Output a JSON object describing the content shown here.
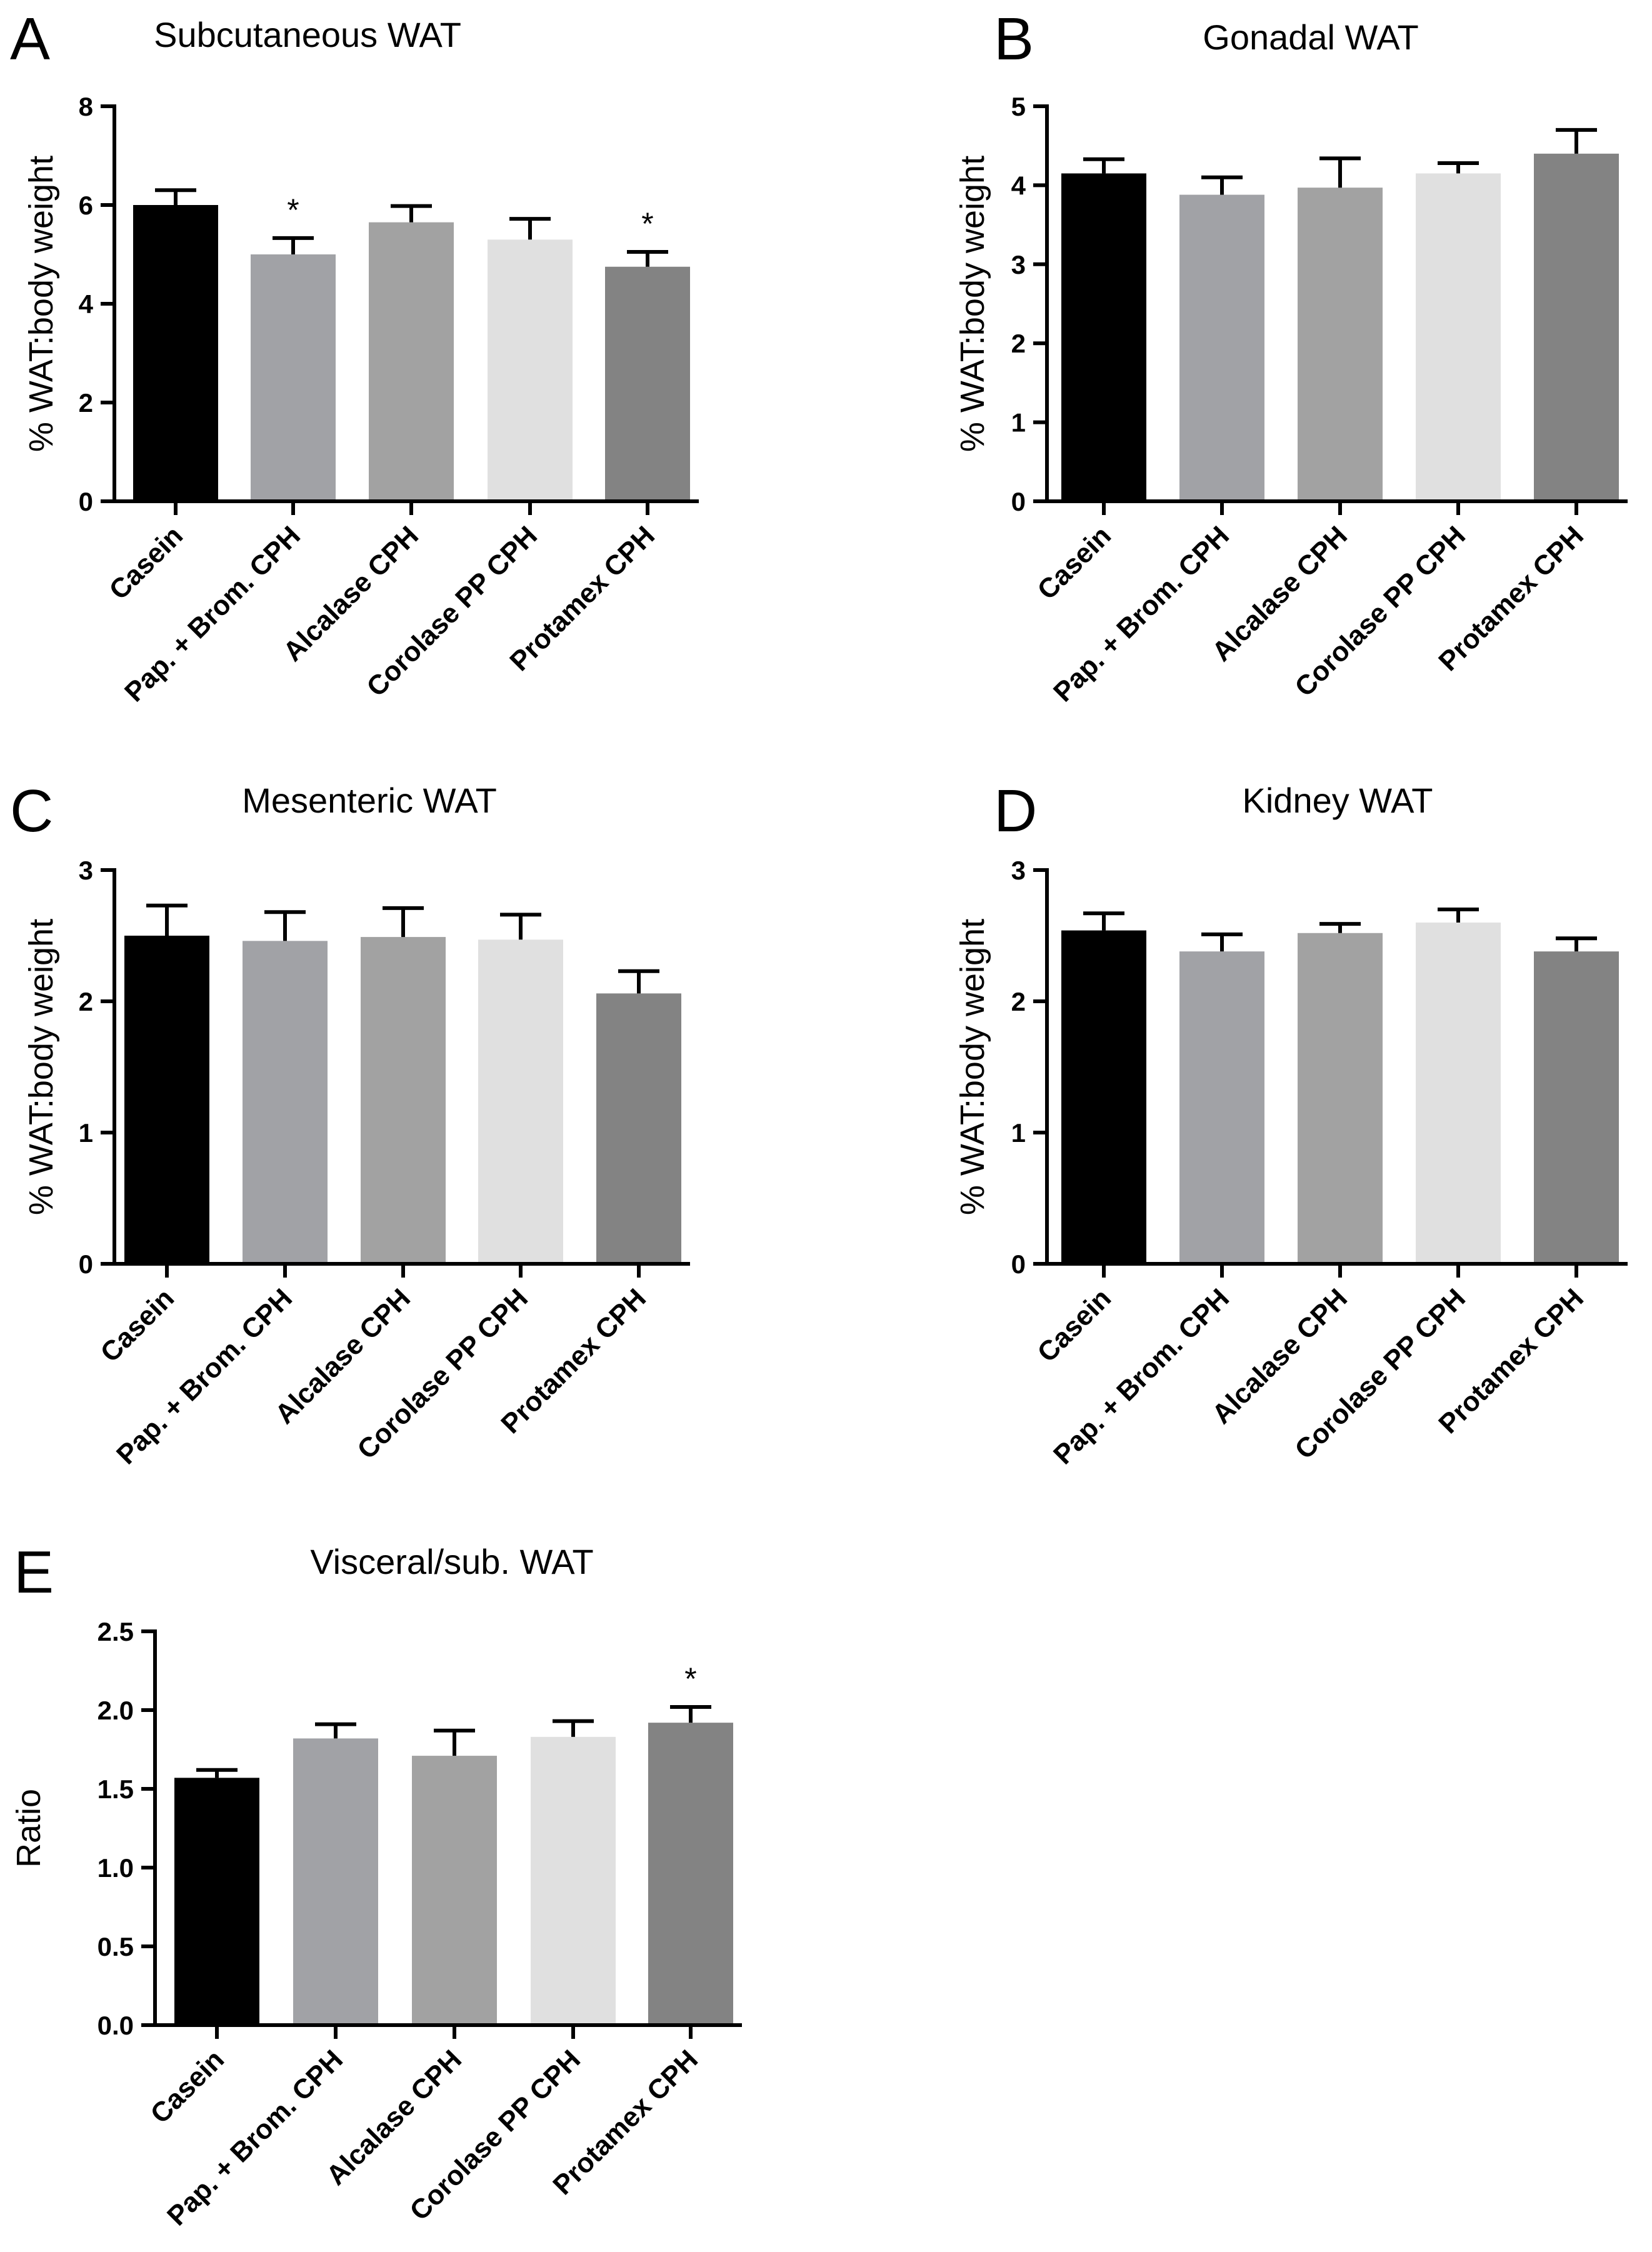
{
  "figure": {
    "categories": [
      "Casein",
      "Pap. + Brom. CPH",
      "Alcalase CPH",
      "Corolase PP CPH",
      "Protamex CPH"
    ],
    "bar_colors": [
      "#000000",
      "#a1a2a6",
      "#a2a2a2",
      "#e0e0e0",
      "#838383"
    ]
  },
  "chart_data": [
    {
      "panel": "A",
      "type": "bar",
      "title": "Subcutaneous WAT",
      "ylabel": "% WAT:body weight",
      "xlabel": "",
      "categories": [
        "Casein",
        "Pap. + Brom. CPH",
        "Alcalase CPH",
        "Corolase PP CPH",
        "Protamex CPH"
      ],
      "values": [
        6.0,
        5.0,
        5.65,
        5.3,
        4.75
      ],
      "errors": [
        0.3,
        0.33,
        0.33,
        0.42,
        0.3
      ],
      "significance": [
        "",
        "*",
        "",
        "",
        "*"
      ],
      "ylim": [
        0,
        8
      ],
      "yticks": [
        0,
        2,
        4,
        6,
        8
      ],
      "ytick_labels": [
        "0",
        "2",
        "4",
        "6",
        "8"
      ]
    },
    {
      "panel": "B",
      "type": "bar",
      "title": "Gonadal WAT",
      "ylabel": "% WAT:body weight",
      "xlabel": "",
      "categories": [
        "Casein",
        "Pap. + Brom. CPH",
        "Alcalase CPH",
        "Corolase PP CPH",
        "Protamex CPH"
      ],
      "values": [
        4.15,
        3.88,
        3.97,
        4.15,
        4.4
      ],
      "errors": [
        0.18,
        0.22,
        0.37,
        0.13,
        0.3
      ],
      "significance": [
        "",
        "",
        "",
        "",
        ""
      ],
      "ylim": [
        0,
        5
      ],
      "yticks": [
        0,
        1,
        2,
        3,
        4,
        5
      ],
      "ytick_labels": [
        "0",
        "1",
        "2",
        "3",
        "4",
        "5"
      ]
    },
    {
      "panel": "C",
      "type": "bar",
      "title": "Mesenteric WAT",
      "ylabel": "% WAT:body weight",
      "xlabel": "",
      "categories": [
        "Casein",
        "Pap. + Brom. CPH",
        "Alcalase CPH",
        "Corolase PP CPH",
        "Protamex CPH"
      ],
      "values": [
        2.5,
        2.46,
        2.49,
        2.47,
        2.06
      ],
      "errors": [
        0.23,
        0.22,
        0.22,
        0.19,
        0.17
      ],
      "significance": [
        "",
        "",
        "",
        "",
        ""
      ],
      "ylim": [
        0,
        3
      ],
      "yticks": [
        0,
        1,
        2,
        3
      ],
      "ytick_labels": [
        "0",
        "1",
        "2",
        "3"
      ]
    },
    {
      "panel": "D",
      "type": "bar",
      "title": "Kidney WAT",
      "ylabel": "% WAT:body weight",
      "xlabel": "",
      "categories": [
        "Casein",
        "Pap. + Brom. CPH",
        "Alcalase CPH",
        "Corolase PP CPH",
        "Protamex CPH"
      ],
      "values": [
        2.54,
        2.38,
        2.52,
        2.6,
        2.38
      ],
      "errors": [
        0.13,
        0.13,
        0.07,
        0.1,
        0.1
      ],
      "significance": [
        "",
        "",
        "",
        "",
        ""
      ],
      "ylim": [
        0,
        3
      ],
      "yticks": [
        0,
        1,
        2,
        3
      ],
      "ytick_labels": [
        "0",
        "1",
        "2",
        "3"
      ]
    },
    {
      "panel": "E",
      "type": "bar",
      "title": "Visceral/sub. WAT",
      "ylabel": "Ratio",
      "xlabel": "",
      "categories": [
        "Casein",
        "Pap. + Brom. CPH",
        "Alcalase CPH",
        "Corolase PP CPH",
        "Protamex CPH"
      ],
      "values": [
        1.57,
        1.82,
        1.71,
        1.83,
        1.92
      ],
      "errors": [
        0.05,
        0.09,
        0.16,
        0.1,
        0.1
      ],
      "significance": [
        "",
        "",
        "",
        "",
        "*"
      ],
      "ylim": [
        0,
        2.5
      ],
      "yticks": [
        0,
        0.5,
        1.0,
        1.5,
        2.0,
        2.5
      ],
      "ytick_labels": [
        "0.0",
        "0.5",
        "1.0",
        "1.5",
        "2.0",
        "2.5"
      ]
    }
  ]
}
